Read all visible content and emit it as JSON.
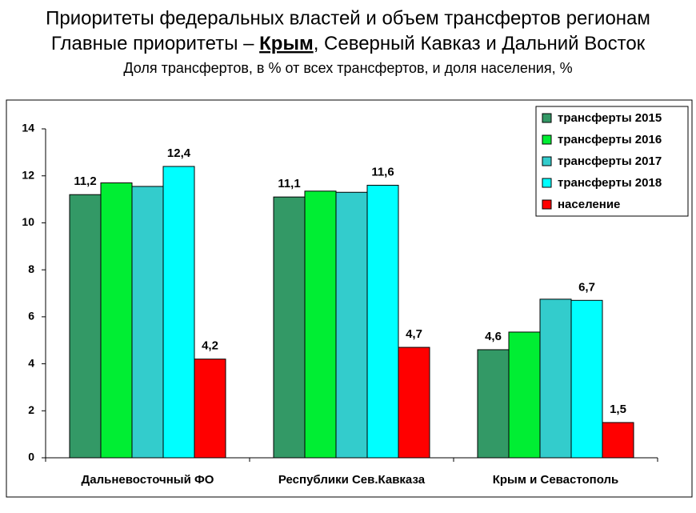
{
  "chart_data": {
    "type": "bar",
    "title": "Приоритеты федеральных властей и объем трансфертов регионам",
    "subtitle": [
      "Главные приоритеты – ",
      "Крым",
      ", Северный Кавказ и Дальний Восток"
    ],
    "caption": "Доля трансфертов, в % от всех трансфертов, и доля населения, %",
    "categories": [
      "Дальневосточный ФО",
      "Республики Сев.Кавказа",
      "Крым и Севастополь"
    ],
    "series": [
      {
        "name": "трансферты 2015",
        "color": "#339966",
        "values": [
          11.2,
          11.1,
          4.6
        ],
        "value_labels": [
          "11,2",
          "11,1",
          "4,6"
        ]
      },
      {
        "name": "трансферты 2016",
        "color": "#00ee33",
        "values": [
          11.7,
          11.35,
          5.35
        ]
      },
      {
        "name": "трансферты 2017",
        "color": "#33cccc",
        "values": [
          11.55,
          11.3,
          6.75
        ]
      },
      {
        "name": "трансферты 2018",
        "color": "#00ffff",
        "values": [
          12.4,
          11.6,
          6.7
        ],
        "value_labels": [
          "12,4",
          "11,6",
          "6,7"
        ]
      },
      {
        "name": "население",
        "color": "#ff0000",
        "values": [
          4.2,
          4.7,
          1.5
        ],
        "value_labels": [
          "4,2",
          "4,7",
          "1,5"
        ]
      }
    ],
    "ylim": [
      0,
      14
    ],
    "yticks": [
      0,
      2,
      4,
      6,
      8,
      10,
      12,
      14
    ],
    "legend": "upper right"
  }
}
